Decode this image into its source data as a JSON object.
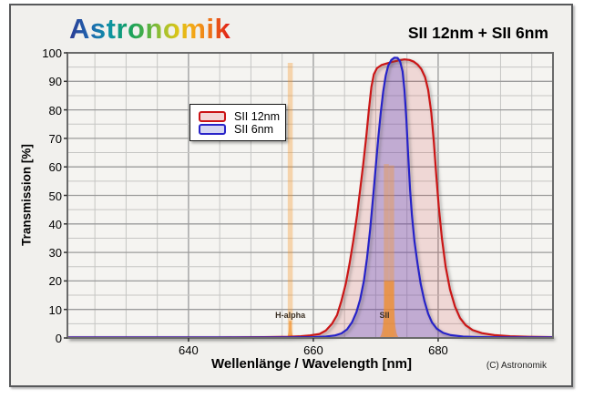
{
  "header": {
    "logo_text": "Astronomik",
    "title": "SII 12nm + SII 6nm"
  },
  "footer": {
    "copyright": "(C) Astronomik"
  },
  "colors": {
    "panel_bg": "#f1f0ed",
    "plot_bg": "#f5f4f1",
    "grid_major": "#9b9b9b",
    "grid_minor": "#c6c6c4",
    "plot_border": "#6a6a6a",
    "tick_mark": "#333333",
    "red_curve": "#cb1316",
    "red_fill": "rgba(203,40,40,0.14)",
    "blue_curve": "#2823c8",
    "blue_fill": "rgba(85,70,205,0.30)",
    "emission": "#f5830e",
    "emission_halo": "rgba(246,150,40,0.35)",
    "emission_fill": "rgba(244,135,28,0.60)",
    "emission_label": "#3d3226",
    "legend_red_fill": "#f3d6d6",
    "legend_blue_fill": "#d6d7f2",
    "copyright_text": "#222222"
  },
  "legend": {
    "items": [
      {
        "label": "SII 12nm",
        "swatch": "red"
      },
      {
        "label": "SII 6nm",
        "swatch": "blue"
      }
    ]
  },
  "chart_data": {
    "type": "line",
    "title": "SII 12nm + SII 6nm",
    "xlabel": "Wellenlänge / Wavelength [nm]",
    "ylabel": "Transmission [%]",
    "xlim": [
      620.6,
      698.4
    ],
    "ylim": [
      0,
      100
    ],
    "x_ticks": [
      640,
      660,
      680
    ],
    "x_minor_step": 5,
    "y_ticks": [
      0,
      10,
      20,
      30,
      40,
      50,
      60,
      70,
      80,
      90,
      100
    ],
    "y_minor_step": 5,
    "grid": true,
    "legend_position": "upper-left-inside",
    "series": [
      {
        "name": "SII 12nm",
        "color_key": "red",
        "fwhm_nm": 12,
        "peak_pct": 97.7,
        "center_nm": 673.5,
        "points": [
          [
            620.6,
            0.2
          ],
          [
            645,
            0.2
          ],
          [
            652,
            0.3
          ],
          [
            656,
            0.4
          ],
          [
            658,
            0.6
          ],
          [
            659.5,
            0.9
          ],
          [
            661,
            1.4
          ],
          [
            662,
            2.6
          ],
          [
            663,
            5
          ],
          [
            663.8,
            8
          ],
          [
            664.5,
            13
          ],
          [
            665.2,
            19
          ],
          [
            665.8,
            26
          ],
          [
            666.4,
            34
          ],
          [
            667,
            43
          ],
          [
            667.5,
            52
          ],
          [
            668,
            61
          ],
          [
            668.5,
            71
          ],
          [
            668.9,
            80
          ],
          [
            669.3,
            88
          ],
          [
            669.7,
            92.5
          ],
          [
            670.2,
            94.6
          ],
          [
            670.9,
            95.7
          ],
          [
            671.8,
            96.3
          ],
          [
            672.8,
            96.9
          ],
          [
            673.8,
            97.4
          ],
          [
            674.6,
            97.7
          ],
          [
            675.4,
            97.5
          ],
          [
            676.1,
            96.9
          ],
          [
            676.7,
            95.9
          ],
          [
            677.3,
            94.3
          ],
          [
            677.9,
            91.5
          ],
          [
            678.4,
            87
          ],
          [
            678.9,
            79
          ],
          [
            679.3,
            69
          ],
          [
            679.7,
            57
          ],
          [
            680.1,
            46
          ],
          [
            680.6,
            35
          ],
          [
            681.2,
            25
          ],
          [
            681.9,
            17
          ],
          [
            682.7,
            11
          ],
          [
            683.5,
            7
          ],
          [
            684.4,
            4.5
          ],
          [
            685.5,
            2.8
          ],
          [
            687,
            1.7
          ],
          [
            689,
            1
          ],
          [
            691.5,
            0.6
          ],
          [
            694.5,
            0.4
          ],
          [
            698.4,
            0.3
          ]
        ]
      },
      {
        "name": "SII 6nm",
        "color_key": "blue",
        "fwhm_nm": 6,
        "peak_pct": 98.3,
        "center_nm": 672.5,
        "points": [
          [
            620.6,
            0.15
          ],
          [
            650,
            0.15
          ],
          [
            656,
            0.2
          ],
          [
            660,
            0.3
          ],
          [
            662,
            0.5
          ],
          [
            663.5,
            0.9
          ],
          [
            664.5,
            1.6
          ],
          [
            665.4,
            3
          ],
          [
            666.2,
            5.5
          ],
          [
            666.9,
            9
          ],
          [
            667.5,
            13.5
          ],
          [
            668.1,
            20
          ],
          [
            668.6,
            28
          ],
          [
            669.1,
            38
          ],
          [
            669.6,
            50
          ],
          [
            670,
            60
          ],
          [
            670.4,
            70
          ],
          [
            670.8,
            79
          ],
          [
            671.2,
            86.5
          ],
          [
            671.6,
            92
          ],
          [
            672,
            95.5
          ],
          [
            672.5,
            97.5
          ],
          [
            673,
            98.3
          ],
          [
            673.5,
            98.2
          ],
          [
            673.9,
            97
          ],
          [
            674.3,
            93.5
          ],
          [
            674.6,
            87
          ],
          [
            674.9,
            77
          ],
          [
            675.2,
            64
          ],
          [
            675.5,
            52
          ],
          [
            675.8,
            43
          ],
          [
            676.2,
            34
          ],
          [
            676.7,
            26
          ],
          [
            677.2,
            19
          ],
          [
            677.8,
            13
          ],
          [
            678.4,
            8.5
          ],
          [
            679,
            5.5
          ],
          [
            679.8,
            3.2
          ],
          [
            680.8,
            1.8
          ],
          [
            682,
            1
          ],
          [
            684,
            0.5
          ],
          [
            687,
            0.3
          ],
          [
            691,
            0.2
          ],
          [
            698.4,
            0.2
          ]
        ]
      }
    ],
    "emission_lines": [
      {
        "name": "H-alpha",
        "label": "H-alpha",
        "label_wl": 656.3,
        "label_pct": 8,
        "lines": [
          {
            "wl": 656.3,
            "peak": 96.5
          }
        ],
        "base": {
          "top_pct": 6,
          "top_range": [
            656.1,
            656.5
          ],
          "bottom_range": [
            655.45,
            657.15
          ]
        }
      },
      {
        "name": "SII",
        "label": "SII",
        "label_wl": 671.4,
        "label_pct": 8,
        "lines": [
          {
            "wl": 671.7,
            "peak": 61
          },
          {
            "wl": 672.55,
            "peak": 60.5
          }
        ],
        "base": {
          "top_pct": 20,
          "top_range": [
            671.35,
            672.95
          ],
          "bottom_range": [
            670.45,
            673.9
          ]
        }
      }
    ]
  }
}
